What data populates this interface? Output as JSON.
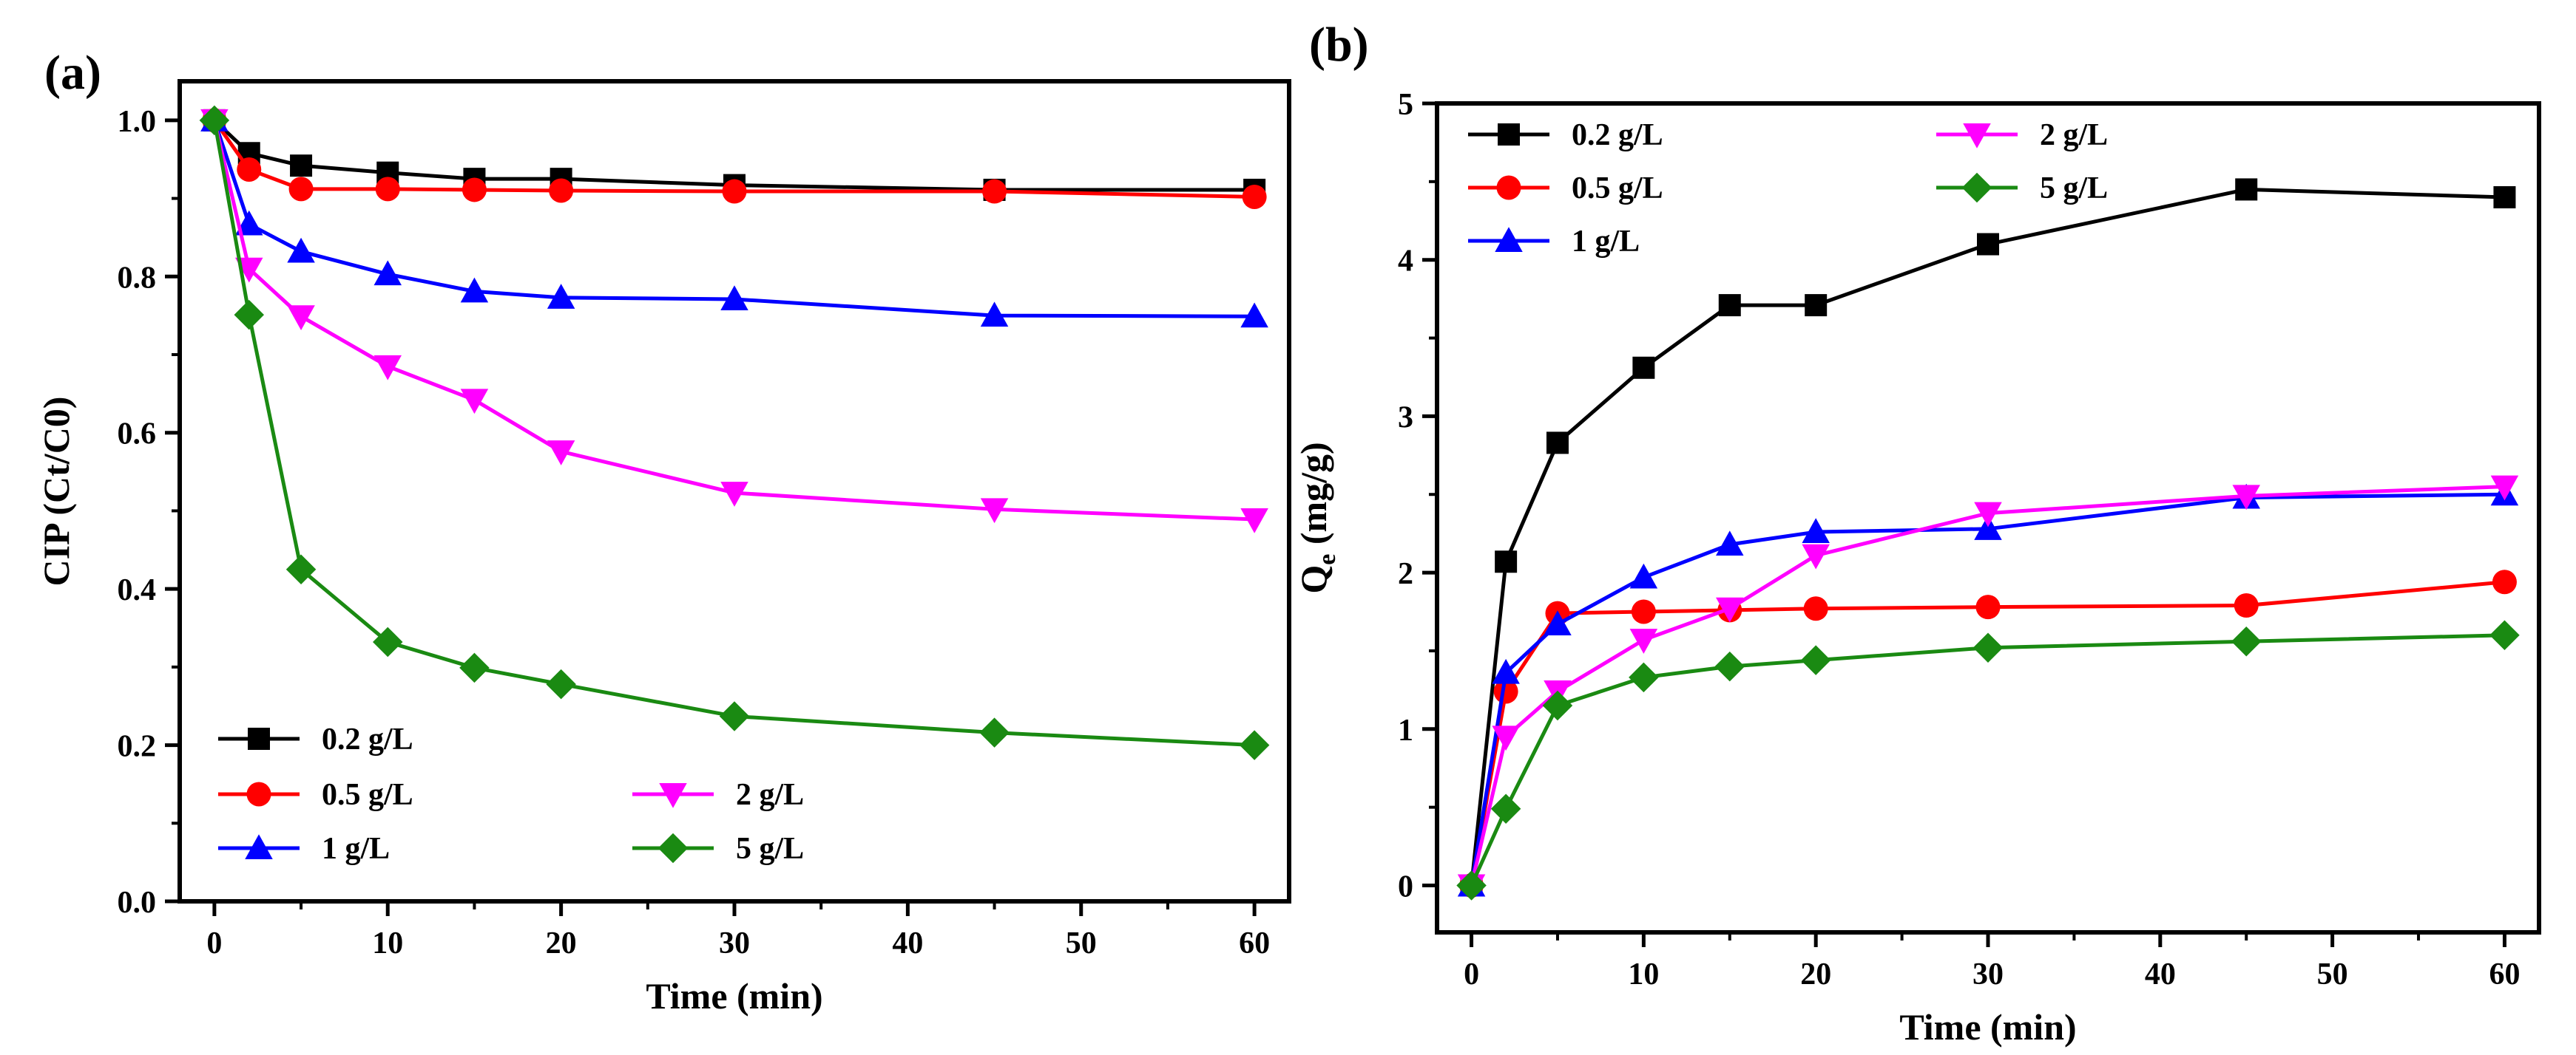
{
  "chart_data": [
    {
      "type": "line",
      "panel_label": "(a)",
      "title": "",
      "xlabel": "Time (min)",
      "ylabel": "CIP (Ct/C0)",
      "xlim": [
        -2,
        62
      ],
      "ylim": [
        0,
        1.05
      ],
      "xticks": [
        0,
        10,
        20,
        30,
        40,
        50,
        60
      ],
      "yticks": [
        0.0,
        0.2,
        0.4,
        0.6,
        0.8,
        1.0
      ],
      "ytick_labels": [
        "0.0",
        "0.2",
        "0.4",
        "0.6",
        "0.8",
        "1.0"
      ],
      "xtick_labels": [
        "0",
        "10",
        "20",
        "30",
        "40",
        "50",
        "60"
      ],
      "grid": false,
      "legend_position": "bottom-left",
      "x": [
        0,
        2,
        5,
        10,
        15,
        20,
        30,
        45,
        60
      ],
      "series": [
        {
          "name": "0.2 g/L",
          "color": "#000000",
          "marker": "square",
          "values": [
            1.0,
            0.958,
            0.942,
            0.933,
            0.925,
            0.925,
            0.917,
            0.911,
            0.911
          ]
        },
        {
          "name": "0.5 g/L",
          "color": "#ff0000",
          "marker": "circle",
          "values": [
            1.0,
            0.937,
            0.912,
            0.912,
            0.911,
            0.91,
            0.909,
            0.909,
            0.902
          ]
        },
        {
          "name": "1  g/L",
          "color": "#0000ff",
          "marker": "triangle-up",
          "values": [
            1.0,
            0.867,
            0.832,
            0.803,
            0.781,
            0.773,
            0.771,
            0.75,
            0.749
          ]
        },
        {
          "name": "2  g/L",
          "color": "#ff00ff",
          "marker": "triangle-down",
          "values": [
            1.0,
            0.81,
            0.749,
            0.685,
            0.642,
            0.576,
            0.523,
            0.502,
            0.489
          ]
        },
        {
          "name": "5  g/L",
          "color": "#1a8a12",
          "marker": "diamond",
          "values": [
            1.0,
            0.751,
            0.425,
            0.332,
            0.299,
            0.278,
            0.237,
            0.216,
            0.2
          ]
        }
      ]
    },
    {
      "type": "line",
      "panel_label": "(b)",
      "title": "",
      "xlabel": "Time (min)",
      "ylabel_main": "Q",
      "ylabel_sub": "e",
      "ylabel_rest": " (mg/g)",
      "xlim": [
        -2,
        62
      ],
      "ylim": [
        -0.3,
        5
      ],
      "xticks": [
        0,
        10,
        20,
        30,
        40,
        50,
        60
      ],
      "yticks": [
        0,
        1,
        2,
        3,
        4,
        5
      ],
      "ytick_labels": [
        "0",
        "1",
        "2",
        "3",
        "4",
        "5"
      ],
      "xtick_labels": [
        "0",
        "10",
        "20",
        "30",
        "40",
        "50",
        "60"
      ],
      "grid": false,
      "legend_position": "top-left",
      "x": [
        0,
        2,
        5,
        10,
        15,
        20,
        30,
        45,
        60
      ],
      "series": [
        {
          "name": "0.2 g/L",
          "color": "#000000",
          "marker": "square",
          "values": [
            0,
            2.07,
            2.83,
            3.31,
            3.71,
            3.71,
            4.1,
            4.45,
            4.4
          ]
        },
        {
          "name": "0.5 g/L",
          "color": "#ff0000",
          "marker": "circle",
          "values": [
            0,
            1.24,
            1.74,
            1.75,
            1.76,
            1.77,
            1.78,
            1.79,
            1.94
          ]
        },
        {
          "name": "1  g/L",
          "color": "#0000ff",
          "marker": "triangle-up",
          "values": [
            0,
            1.36,
            1.67,
            1.97,
            2.18,
            2.26,
            2.28,
            2.48,
            2.5
          ]
        },
        {
          "name": "2  g/L",
          "color": "#ff00ff",
          "marker": "triangle-down",
          "values": [
            0,
            0.95,
            1.24,
            1.57,
            1.77,
            2.11,
            2.38,
            2.49,
            2.55
          ]
        },
        {
          "name": "5  g/L",
          "color": "#1a8a12",
          "marker": "diamond",
          "values": [
            0,
            0.49,
            1.15,
            1.33,
            1.4,
            1.44,
            1.52,
            1.56,
            1.6
          ]
        }
      ]
    }
  ]
}
